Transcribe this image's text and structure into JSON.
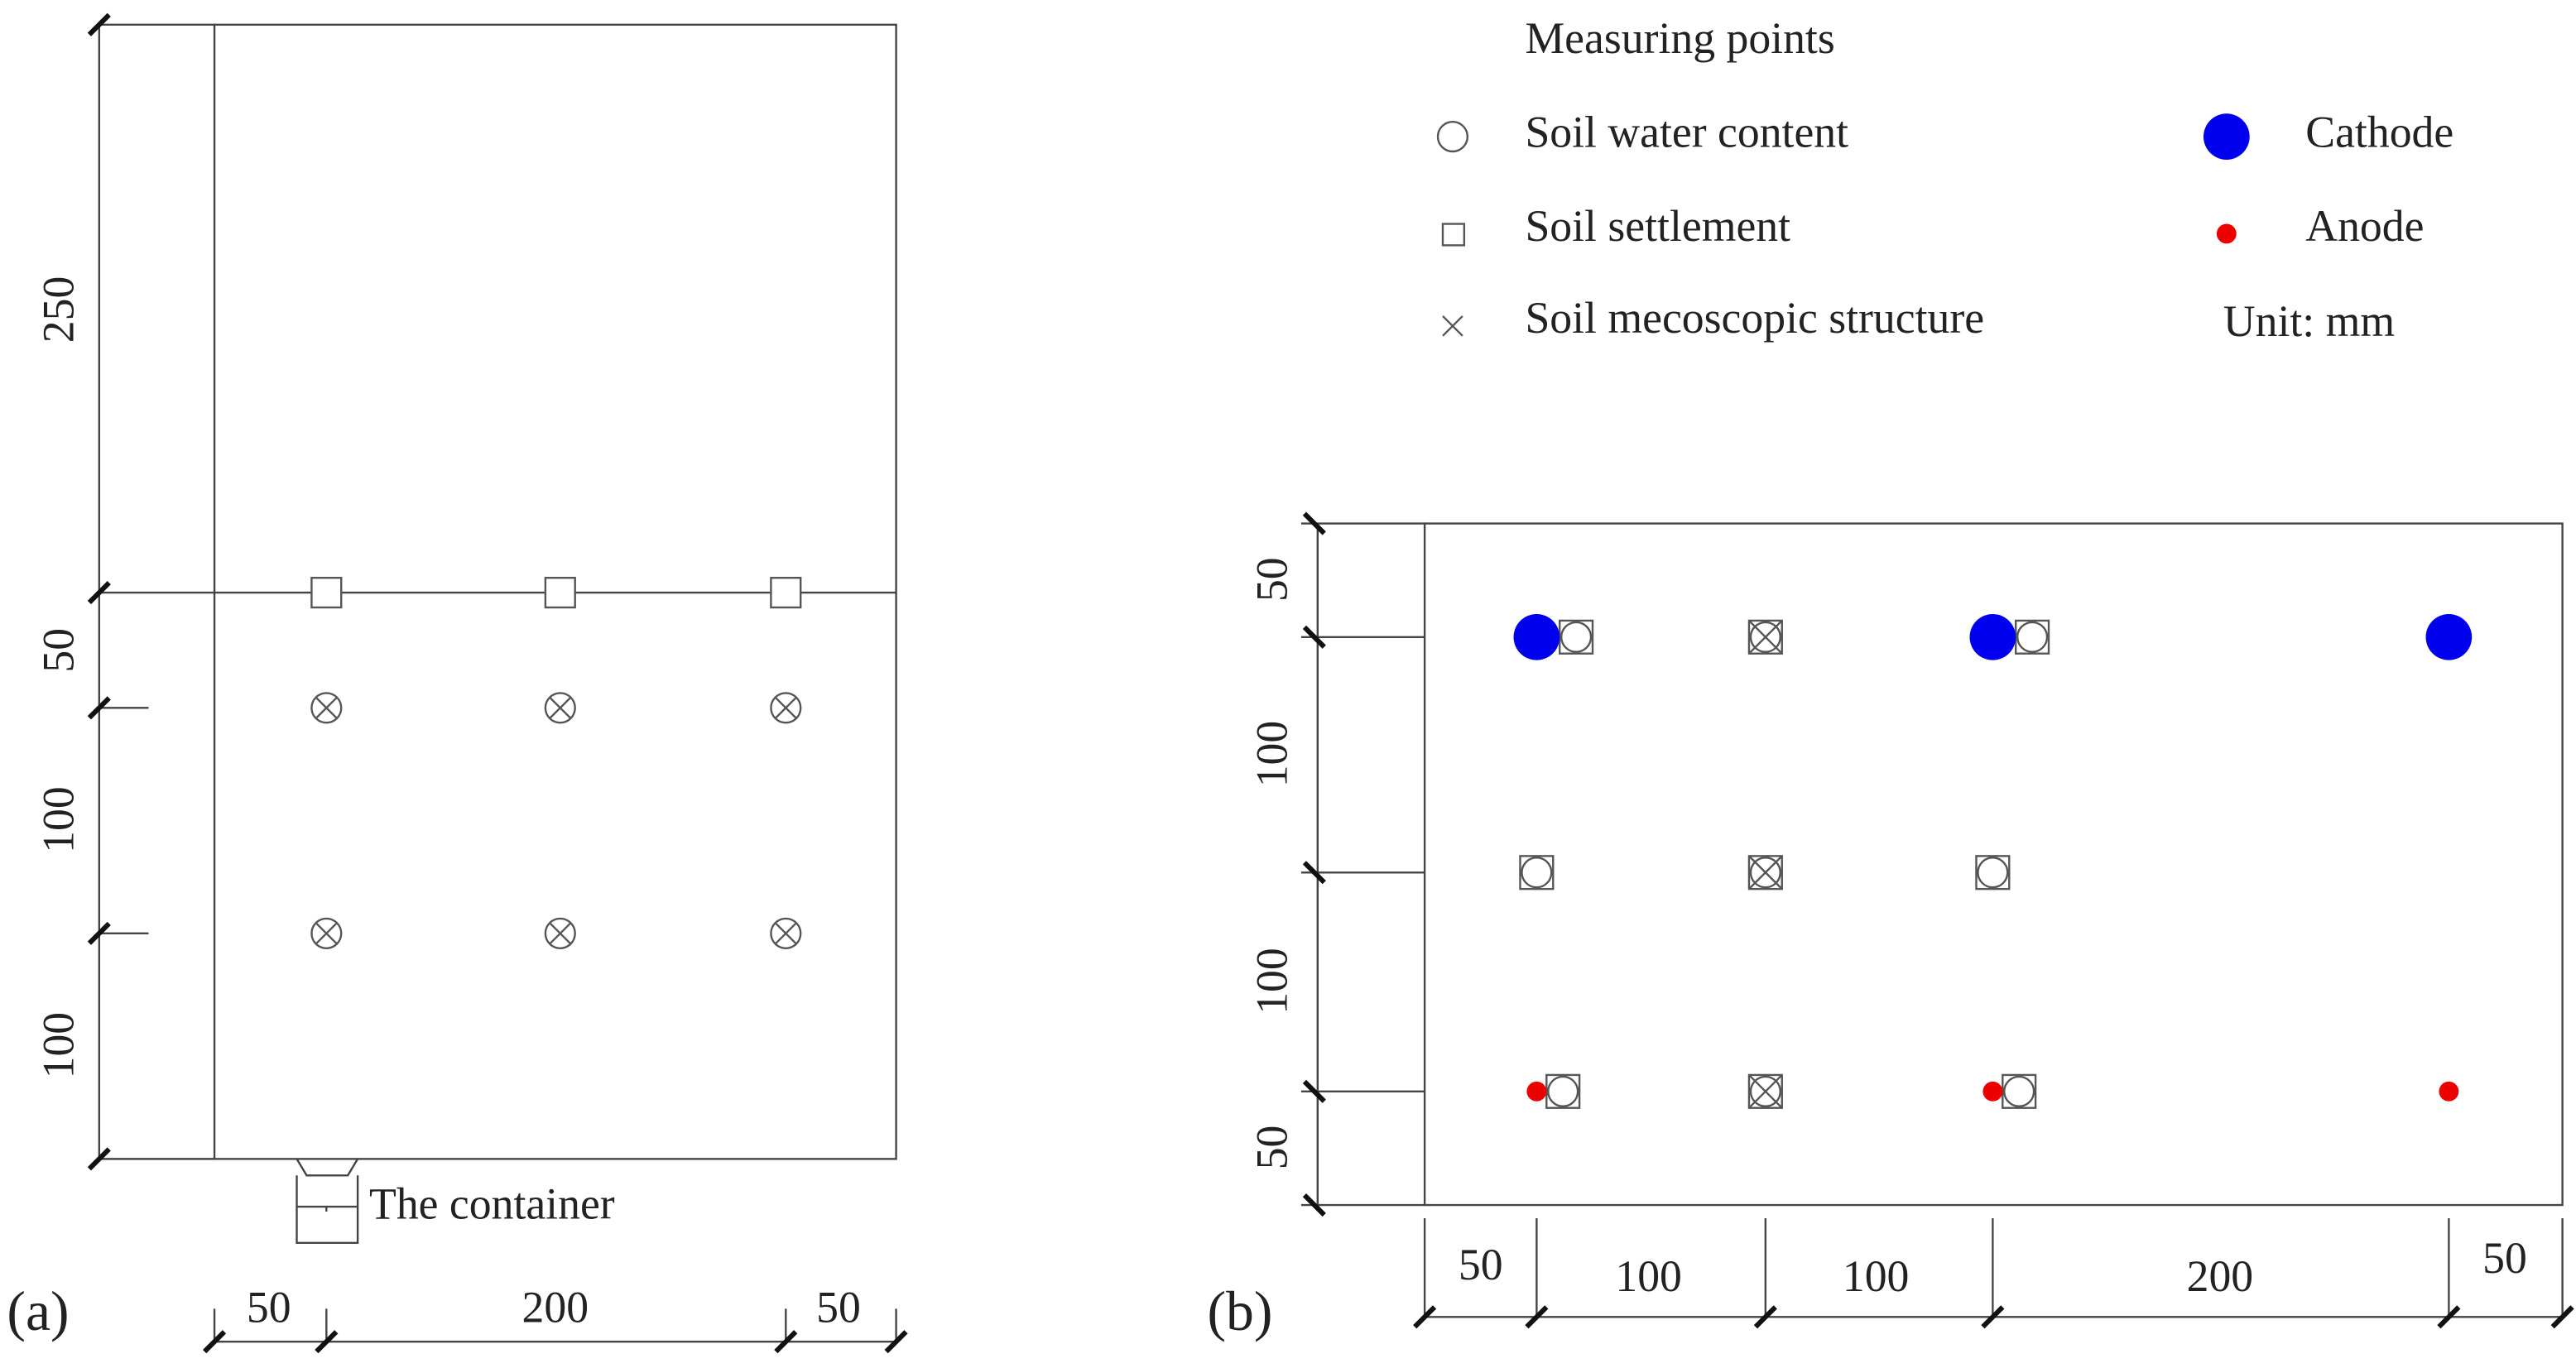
{
  "panel_a": {
    "label": "(a)",
    "height_dims": [
      "250",
      "50",
      "100",
      "100"
    ],
    "width_dims": [
      "50",
      "200",
      "50"
    ],
    "container_label": "The container"
  },
  "panel_b": {
    "label": "(b)",
    "height_dims": [
      "50",
      "100",
      "100",
      "50"
    ],
    "width_dims": [
      "50",
      "100",
      "100",
      "200",
      "50"
    ]
  },
  "legend": {
    "title": "Measuring points",
    "items": [
      "Soil water content",
      "Soil settlement",
      "Soil mecoscopic structure",
      "Cathode",
      "Anode"
    ],
    "unit": "Unit: mm"
  }
}
